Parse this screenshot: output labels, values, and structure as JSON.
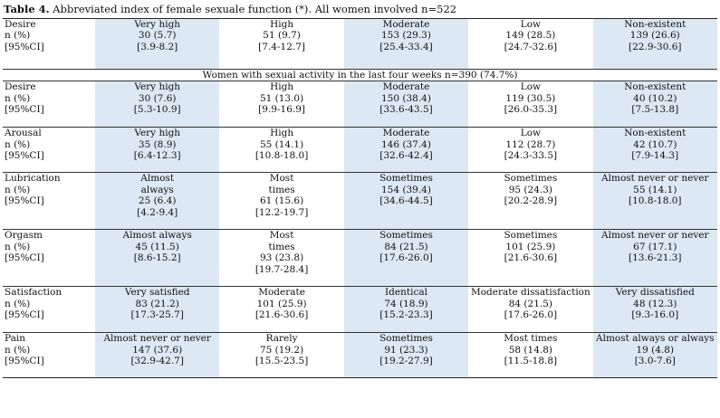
{
  "caption": {
    "label": "Table 4.",
    "text": " Abbreviated index of female sexuale function (*). All women involved n=522"
  },
  "row_labels": {
    "n": "n (%)",
    "ci": "[95%CI]"
  },
  "section1": {
    "domain": "Desire",
    "cells": [
      {
        "cat": "Very high",
        "n": "30 (5.7)",
        "ci": "[3.9-8.2]"
      },
      {
        "cat": "High",
        "n": "51 (9.7)",
        "ci": "[7.4-12.7]"
      },
      {
        "cat": "Moderate",
        "n": "153 (29.3)",
        "ci": "[25.4-33.4]"
      },
      {
        "cat": "Low",
        "n": "149 (28.5)",
        "ci": "[24.7-32.6]"
      },
      {
        "cat": "Non-existent",
        "n": "139 (26.6)",
        "ci": "[22.9-30.6]"
      }
    ]
  },
  "subheading": "Women with sexual activity in the last four weeks n=390 (74.7%)",
  "domains": [
    {
      "name": "Desire",
      "cells": [
        {
          "cat": "Very high",
          "n": "30 (7.6)",
          "ci": "[5.3-10.9]"
        },
        {
          "cat": "High",
          "n": "51 (13.0)",
          "ci": "[9.9-16.9]"
        },
        {
          "cat": "Moderate",
          "n": "150 (38.4)",
          "ci": "[33.6-43.5]"
        },
        {
          "cat": "Low",
          "n": "119 (30.5)",
          "ci": "[26.0-35.3]"
        },
        {
          "cat": "Non-existent",
          "n": "40 (10.2)",
          "ci": "[7.5-13.8]"
        }
      ]
    },
    {
      "name": "Arousal",
      "cells": [
        {
          "cat": "Very high",
          "n": "35 (8.9)",
          "ci": "[6.4-12.3]"
        },
        {
          "cat": "High",
          "n": "55 (14.1)",
          "ci": "[10.8-18.0]"
        },
        {
          "cat": "Moderate",
          "n": "146 (37.4)",
          "ci": "[32.6-42.4]"
        },
        {
          "cat": "Low",
          "n": "112 (28.7)",
          "ci": "[24.3-33.5]"
        },
        {
          "cat": "Non-existent",
          "n": "42 (10.7)",
          "ci": "[7.9-14.3]"
        }
      ]
    },
    {
      "name": "Lubrication",
      "cells": [
        {
          "cat": "Almost always",
          "n": "25 (6.4)",
          "ci": "[4.2-9.4]"
        },
        {
          "cat": "Most times",
          "n": "61 (15.6)",
          "ci": "[12.2-19.7]"
        },
        {
          "cat": "Sometimes",
          "n": "154 (39.4)",
          "ci": "[34.6-44.5]"
        },
        {
          "cat": "Sometimes",
          "n": "95 (24.3)",
          "ci": "[20.2-28.9]"
        },
        {
          "cat": "Almost never or never",
          "n": "55 (14.1)",
          "ci": "[10.8-18.0]"
        }
      ]
    },
    {
      "name": "Orgasm",
      "cells": [
        {
          "cat": "Almost always",
          "n": "45 (11.5)",
          "ci": "[8.6-15.2]"
        },
        {
          "cat": "Most times",
          "n": "93 (23.8)",
          "ci": "[19.7-28.4]"
        },
        {
          "cat": "Sometimes",
          "n": "84 (21.5)",
          "ci": "[17.6-26.0]"
        },
        {
          "cat": "Sometimes",
          "n": "101 (25.9)",
          "ci": "[21.6-30.6]"
        },
        {
          "cat": "Almost never or never",
          "n": "67 (17.1)",
          "ci": "[13.6-21.3]"
        }
      ]
    },
    {
      "name": "Satisfaction",
      "cells": [
        {
          "cat": "Very satisfied",
          "n": "83 (21.2)",
          "ci": "[17.3-25.7]"
        },
        {
          "cat": "Moderate",
          "n": "101 (25.9)",
          "ci": "[21.6-30.6]"
        },
        {
          "cat": "Identical",
          "n": "74 (18.9)",
          "ci": "[15.2-23.3]"
        },
        {
          "cat": "Moderate dissatisfaction",
          "n": "84 (21.5)",
          "ci": "[17.6-26.0]"
        },
        {
          "cat": "Very dissatisfied",
          "n": "48 (12.3)",
          "ci": "[9.3-16.0]"
        }
      ]
    },
    {
      "name": "Pain",
      "cells": [
        {
          "cat": "Almost never or never",
          "n": "147 (37.6)",
          "ci": "[32.9-42.7]"
        },
        {
          "cat": "Rarely",
          "n": "75 (19.2)",
          "ci": "[15.5-23.5]"
        },
        {
          "cat": "Sometimes",
          "n": "91 (23.3)",
          "ci": "[19.2-27.9]"
        },
        {
          "cat": "Most times",
          "n": "58 (14.8)",
          "ci": "[11.5-18.8]"
        },
        {
          "cat": "Almost always or always",
          "n": "19 (4.8)",
          "ci": "[3.0-7.6]"
        }
      ]
    }
  ],
  "colors": {
    "shade": "#dce8f3"
  }
}
